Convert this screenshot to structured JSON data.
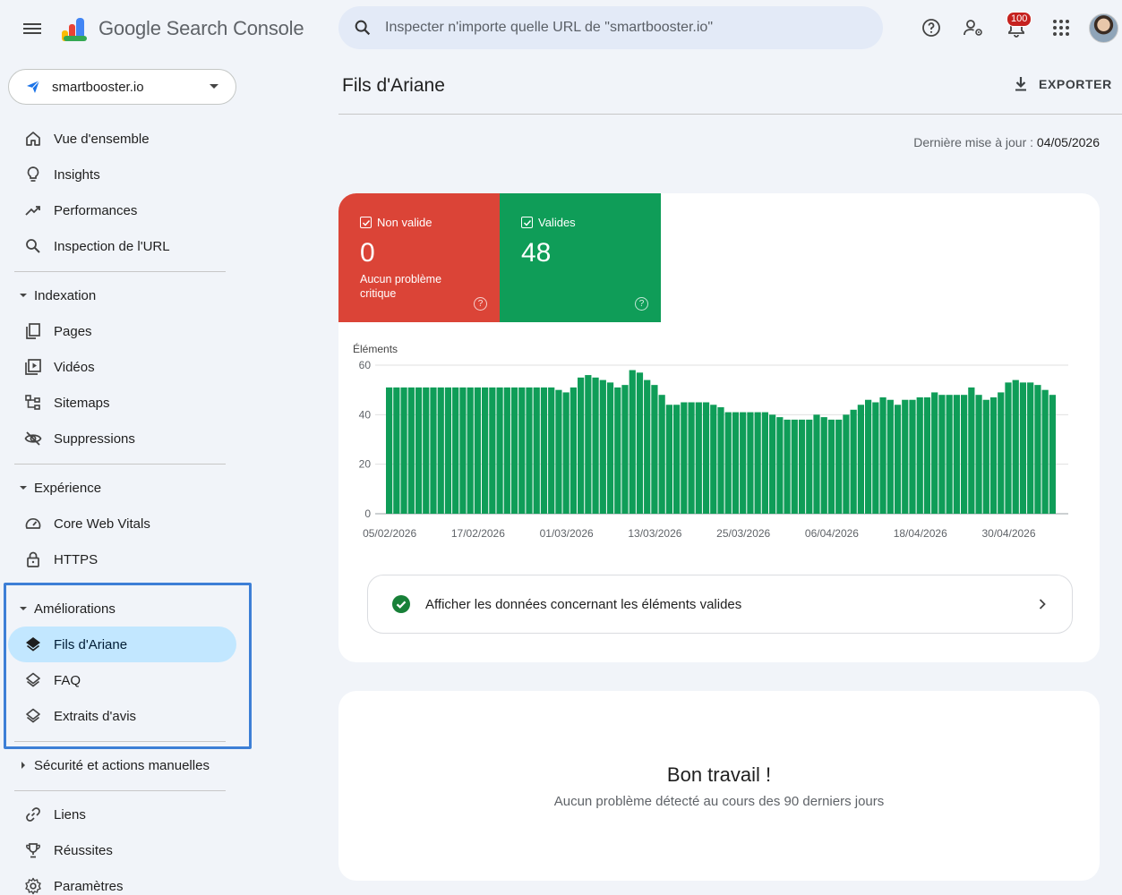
{
  "app": {
    "title": "Google Search Console"
  },
  "search": {
    "placeholder": "Inspecter n'importe quelle URL de \"smartbooster.io\""
  },
  "topbar": {
    "notifications_count": "100",
    "icons": [
      "help-icon",
      "manage-users-icon",
      "notifications-icon",
      "apps-icon",
      "account-avatar"
    ]
  },
  "property": {
    "name": "smartbooster.io"
  },
  "sidebar": {
    "main": [
      {
        "label": "Vue d'ensemble",
        "icon": "home-icon"
      },
      {
        "label": "Insights",
        "icon": "lightbulb-icon"
      },
      {
        "label": "Performances",
        "icon": "trending-icon"
      },
      {
        "label": "Inspection de l'URL",
        "icon": "search-icon"
      }
    ],
    "indexation": {
      "label": "Indexation",
      "items": [
        {
          "label": "Pages",
          "icon": "pages-icon"
        },
        {
          "label": "Vidéos",
          "icon": "video-icon"
        },
        {
          "label": "Sitemaps",
          "icon": "sitemap-icon"
        },
        {
          "label": "Suppressions",
          "icon": "visibility-off-icon"
        }
      ]
    },
    "experience": {
      "label": "Expérience",
      "items": [
        {
          "label": "Core Web Vitals",
          "icon": "speed-icon"
        },
        {
          "label": "HTTPS",
          "icon": "lock-icon"
        }
      ]
    },
    "ameliorations": {
      "label": "Améliorations",
      "items": [
        {
          "label": "Fils d'Ariane",
          "icon": "layers-icon",
          "active": true
        },
        {
          "label": "FAQ",
          "icon": "layers-outline-icon"
        },
        {
          "label": "Extraits d'avis",
          "icon": "layers-outline-icon"
        }
      ]
    },
    "securite": {
      "label": "Sécurité et actions manuelles"
    },
    "bottom": [
      {
        "label": "Liens",
        "icon": "link-icon"
      },
      {
        "label": "Réussites",
        "icon": "trophy-icon"
      },
      {
        "label": "Paramètres",
        "icon": "settings-icon"
      }
    ]
  },
  "header": {
    "title": "Fils d'Ariane",
    "export_label": "EXPORTER",
    "updated_label": "Dernière mise à jour :",
    "updated_date": "04/05/2026"
  },
  "tiles": {
    "invalid": {
      "label": "Non valide",
      "value": "0",
      "sub": "Aucun problème critique",
      "color": "#db4437"
    },
    "valid": {
      "label": "Valides",
      "value": "48",
      "color": "#0f9d58"
    }
  },
  "chart_data": {
    "type": "bar",
    "ylabel": "Éléments",
    "ylim": [
      0,
      60
    ],
    "yticks": [
      0,
      20,
      40,
      60
    ],
    "grid": true,
    "color": "#0f9d58",
    "xtick_labels": [
      "05/02/2026",
      "17/02/2026",
      "01/03/2026",
      "13/03/2026",
      "25/03/2026",
      "06/04/2026",
      "18/04/2026",
      "30/04/2026"
    ],
    "series": [
      {
        "values": [
          51,
          51,
          51,
          51,
          51,
          51,
          51,
          51,
          51,
          51,
          51,
          51,
          51,
          51,
          51,
          51,
          51,
          51,
          51,
          51,
          51,
          51,
          51,
          50,
          49,
          51,
          55,
          56,
          55,
          54,
          53,
          51,
          52,
          58,
          57,
          54,
          52,
          48,
          44,
          44,
          45,
          45,
          45,
          45,
          44,
          43,
          41,
          41,
          41,
          41,
          41,
          41,
          40,
          39,
          38,
          38,
          38,
          38,
          40,
          39,
          38,
          38,
          40,
          42,
          44,
          46,
          45,
          47,
          46,
          44,
          46,
          46,
          47,
          47,
          49,
          48,
          48,
          48,
          48,
          51,
          48,
          46,
          47,
          49,
          53,
          54,
          53,
          53,
          52,
          50,
          48
        ]
      }
    ]
  },
  "valid_row": {
    "label": "Afficher les données concernant les éléments valides"
  },
  "summary": {
    "title": "Bon travail !",
    "subtitle": "Aucun problème détecté au cours des 90 derniers jours"
  }
}
